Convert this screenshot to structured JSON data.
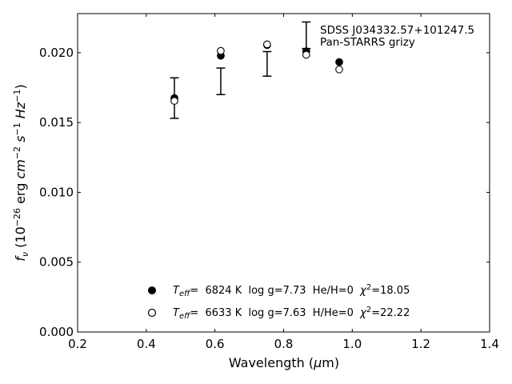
{
  "chart_data": {
    "type": "scatter",
    "title": "",
    "xlabel": "Wavelength (μm)",
    "ylabel": "f_ν (10^-26 erg cm^-2 s^-1 Hz^-1)",
    "xlim": [
      0.2,
      1.4
    ],
    "ylim": [
      0.0,
      0.0228
    ],
    "x_ticks": [
      "0.2",
      "0.4",
      "0.6",
      "0.8",
      "1.0",
      "1.2",
      "1.4"
    ],
    "y_ticks": [
      "0.000",
      "0.005",
      "0.010",
      "0.015",
      "0.020"
    ],
    "grid": false,
    "annotation": {
      "line1": "SDSS J034332.57+101247.5",
      "line2": "Pan-STARRS grizy"
    },
    "observed": {
      "x": [
        0.482,
        0.617,
        0.752,
        0.866,
        0.962
      ],
      "y": [
        0.01675,
        0.01795,
        0.0192,
        0.02125,
        null
      ],
      "yerr": [
        0.00145,
        0.00095,
        0.00088,
        0.00095,
        null
      ]
    },
    "series": [
      {
        "marker": "filled-circle",
        "x": [
          0.482,
          0.617,
          0.752,
          0.866,
          0.962
        ],
        "y": [
          0.01675,
          0.01978,
          0.02055,
          0.0201,
          0.01933
        ],
        "legend": {
          "teff_label": "T",
          "teff_sub": "eff",
          "params": "=  6824 K  log g=7.73  He/H=0  ",
          "chi_label": "χ",
          "chi_sup": "2",
          "chi_value": "=18.05"
        }
      },
      {
        "marker": "open-circle",
        "x": [
          0.482,
          0.617,
          0.752,
          0.866,
          0.962
        ],
        "y": [
          0.01655,
          0.02013,
          0.0206,
          0.01985,
          0.0188
        ],
        "legend": {
          "teff_label": "T",
          "teff_sub": "eff",
          "params": "=  6633 K  log g=7.63  H/He=0  ",
          "chi_label": "χ",
          "chi_sup": "2",
          "chi_value": "=22.22"
        }
      }
    ]
  }
}
